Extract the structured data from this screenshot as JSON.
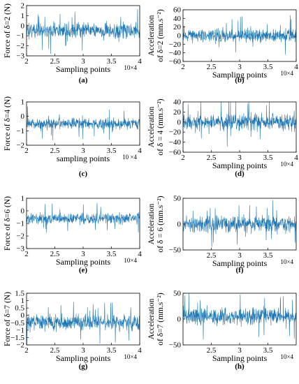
{
  "figure": {
    "panel_color": "#1f77b4"
  },
  "chart_data": [
    {
      "type": "line",
      "panel_label": "(a)",
      "ylabel": "Force of δ=2 (N)",
      "xlabel": "Sampling points",
      "x_exponent": "10×4",
      "xlim": [
        2,
        4
      ],
      "ylim": [
        -3,
        2
      ],
      "x_ticks": [
        "2",
        "2.5",
        "3",
        "3.5",
        "4"
      ],
      "y_ticks": [
        "−3",
        "−2",
        "−1",
        "0",
        "1",
        "2"
      ],
      "series": [
        {
          "color": "#1f77b4",
          "center": -0.5,
          "amplitude": 1.1,
          "spikes": 2.3
        }
      ]
    },
    {
      "type": "line",
      "panel_label": "(b)",
      "ylabel": "Acceleration of δ=2 (mm.s⁻²)",
      "xlabel": "Sampling points",
      "x_exponent": "10×4",
      "xlim": [
        2,
        4
      ],
      "ylim": [
        -60,
        60
      ],
      "x_ticks": [
        "2",
        "2.5",
        "3",
        "3.5",
        "4"
      ],
      "y_ticks": [
        "−60",
        "−40",
        "−20",
        "0",
        "20",
        "40",
        "60"
      ],
      "series": [
        {
          "color": "#1f77b4",
          "center": 0,
          "amplitude": 22,
          "spikes": 50
        }
      ]
    },
    {
      "type": "line",
      "panel_label": "(c)",
      "ylabel": "Force of δ=4 (N)",
      "xlabel": "sampling points",
      "x_exponent": "10 ×4",
      "xlim": [
        2,
        4
      ],
      "ylim": [
        -2,
        1
      ],
      "x_ticks": [
        "2",
        "2.5",
        "3",
        "3.5",
        "4"
      ],
      "y_ticks": [
        "−2",
        "−1",
        "0",
        "1"
      ],
      "series": [
        {
          "color": "#1f77b4",
          "center": -0.5,
          "amplitude": 0.55,
          "spikes": 1.2
        }
      ]
    },
    {
      "type": "line",
      "panel_label": "(d)",
      "ylabel": "Acceleration of δ = 4 (mm.s⁻²)",
      "xlabel": "Sampling points",
      "x_exponent": "10×4",
      "xlim": [
        2,
        4
      ],
      "ylim": [
        -60,
        40
      ],
      "x_ticks": [
        "2",
        "2.5",
        "3",
        "3.5",
        "4"
      ],
      "y_ticks": [
        "−60",
        "−40",
        "−20",
        "0",
        "20",
        "40"
      ],
      "series": [
        {
          "color": "#1f77b4",
          "center": 0,
          "amplitude": 22,
          "spikes": 50
        }
      ]
    },
    {
      "type": "line",
      "panel_label": "(e)",
      "ylabel": "Force of δ=6 (N)",
      "xlabel": "Sampling points",
      "x_exponent": "10×4",
      "xlim": [
        2,
        4
      ],
      "ylim": [
        -3,
        1
      ],
      "x_ticks": [
        "2",
        "2.5",
        "3",
        "3.5",
        "4"
      ],
      "y_ticks": [
        "−3",
        "−2",
        "−1",
        "0",
        "1"
      ],
      "series": [
        {
          "color": "#1f77b4",
          "center": -0.6,
          "amplitude": 0.6,
          "spikes": 1.3
        }
      ]
    },
    {
      "type": "line",
      "panel_label": "(f)",
      "ylabel": "Acceleration of δ = 6 (mm.s⁻²)",
      "xlabel": "Sampling points",
      "x_exponent": "10×4",
      "xlim": [
        2,
        4
      ],
      "ylim": [
        -50,
        50
      ],
      "x_ticks": [
        "2.5",
        "3",
        "3.5"
      ],
      "y_ticks": [
        "−50",
        "0",
        "50"
      ],
      "series": [
        {
          "color": "#1f77b4",
          "center": 0,
          "amplitude": 22,
          "spikes": 48
        }
      ]
    },
    {
      "type": "line",
      "panel_label": "(g)",
      "ylabel": "Force of δ=7 (N)",
      "xlabel": "Sampling points",
      "x_exponent": "10×4",
      "xlim": [
        2,
        4
      ],
      "ylim": [
        -2,
        1.5
      ],
      "x_ticks": [
        "2",
        "2.5",
        "3",
        "3.5",
        "4"
      ],
      "y_ticks": [
        "−2",
        "−1.5",
        "−1",
        "−0.5",
        "0",
        "0.5",
        "1",
        "1.5"
      ],
      "series": [
        {
          "color": "#1f77b4",
          "center": -0.5,
          "amplitude": 0.75,
          "spikes": 1.5
        }
      ]
    },
    {
      "type": "line",
      "panel_label": "(h)",
      "ylabel": "Acceleration of δ=7 (mm.s⁻²)",
      "xlabel": "Sampling points",
      "x_exponent": "10×4",
      "xlim": [
        2,
        4
      ],
      "ylim": [
        -50,
        50
      ],
      "x_ticks": [
        "2.5",
        "3",
        "3.5"
      ],
      "y_ticks": [
        "−50",
        "0",
        "50"
      ],
      "series": [
        {
          "color": "#1f77b4",
          "center": 5,
          "amplitude": 22,
          "spikes": 45
        }
      ]
    }
  ]
}
